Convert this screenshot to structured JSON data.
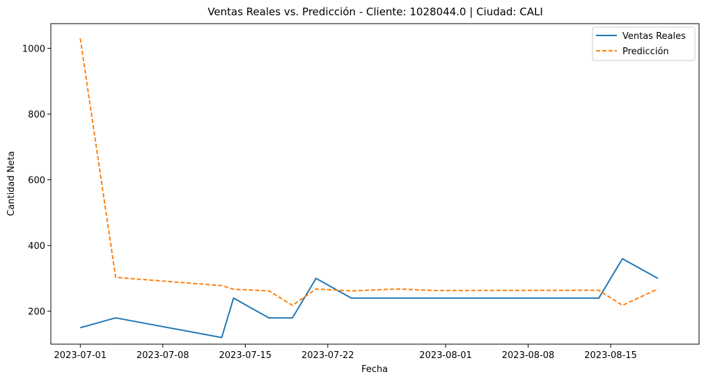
{
  "chart_data": {
    "type": "line",
    "title": "Ventas Reales vs. Predicción - Cliente: 1028044.0 | Ciudad: CALI",
    "xlabel": "Fecha",
    "ylabel": "Cantidad Neta",
    "x_ticks": [
      "2023-07-01",
      "2023-07-08",
      "2023-07-15",
      "2023-07-22",
      "2023-08-01",
      "2023-08-08",
      "2023-08-15"
    ],
    "y_ticks": [
      200,
      400,
      600,
      800,
      1000
    ],
    "xlim": [
      "2023-06-28 12:00",
      "2023-08-22 12:00"
    ],
    "ylim": [
      100,
      1075
    ],
    "grid": false,
    "legend_position": "top-right",
    "series": [
      {
        "name": "Ventas Reales",
        "color": "#1f77b4",
        "style": "solid",
        "points": [
          [
            "2023-07-01",
            150
          ],
          [
            "2023-07-04",
            180
          ],
          [
            "2023-07-13",
            120
          ],
          [
            "2023-07-14",
            240
          ],
          [
            "2023-07-17",
            180
          ],
          [
            "2023-07-19",
            180
          ],
          [
            "2023-07-21",
            300
          ],
          [
            "2023-07-24",
            240
          ],
          [
            "2023-07-28",
            240
          ],
          [
            "2023-07-31",
            240
          ],
          [
            "2023-08-14",
            240
          ],
          [
            "2023-08-16",
            360
          ],
          [
            "2023-08-19",
            300
          ]
        ]
      },
      {
        "name": "Predicción",
        "color": "#ff7f0e",
        "style": "dashed",
        "points": [
          [
            "2023-07-01",
            1030
          ],
          [
            "2023-07-04",
            303
          ],
          [
            "2023-07-13",
            278
          ],
          [
            "2023-07-14",
            267
          ],
          [
            "2023-07-17",
            262
          ],
          [
            "2023-07-19",
            218
          ],
          [
            "2023-07-21",
            268
          ],
          [
            "2023-07-24",
            262
          ],
          [
            "2023-07-28",
            268
          ],
          [
            "2023-07-31",
            263
          ],
          [
            "2023-08-14",
            264
          ],
          [
            "2023-08-16",
            218
          ],
          [
            "2023-08-19",
            268
          ]
        ]
      }
    ]
  }
}
